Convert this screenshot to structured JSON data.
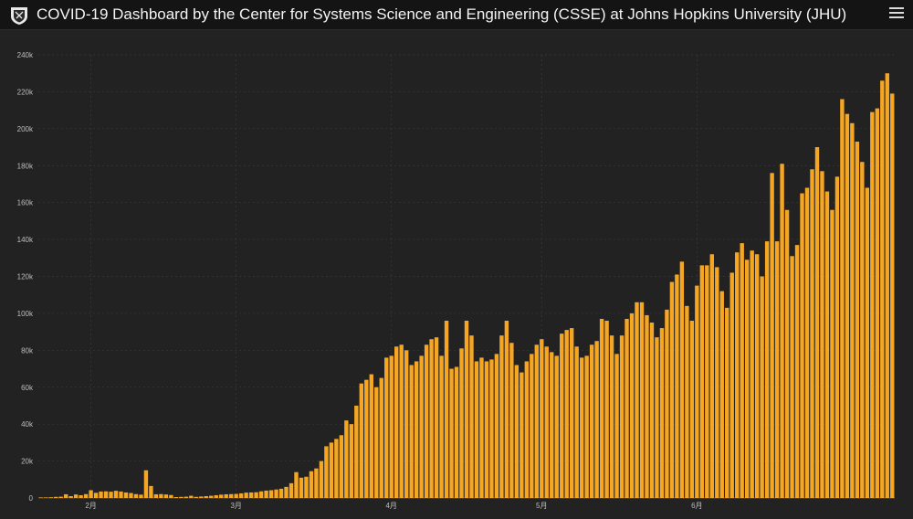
{
  "header": {
    "title": "COVID-19 Dashboard by the Center for Systems Science and Engineering (CSSE) at Johns Hopkins University (JHU)",
    "logo_icon": "jhu-shield-icon",
    "menu_icon": "hamburger-menu-icon"
  },
  "colors": {
    "bar": "#f5a623",
    "background": "#222222",
    "header_background": "#141414",
    "grid": "#3a3a3a",
    "tick_text": "#bdbdbd"
  },
  "chart_data": {
    "type": "bar",
    "title": "",
    "xlabel": "",
    "ylabel": "",
    "ylim": [
      0,
      240000
    ],
    "yticks": [
      {
        "value": 0,
        "label": "0"
      },
      {
        "value": 20000,
        "label": "20k"
      },
      {
        "value": 40000,
        "label": "40k"
      },
      {
        "value": 60000,
        "label": "60k"
      },
      {
        "value": 80000,
        "label": "80k"
      },
      {
        "value": 100000,
        "label": "100k"
      },
      {
        "value": 120000,
        "label": "120k"
      },
      {
        "value": 140000,
        "label": "140k"
      },
      {
        "value": 160000,
        "label": "160k"
      },
      {
        "value": 180000,
        "label": "180k"
      },
      {
        "value": 200000,
        "label": "200k"
      },
      {
        "value": 220000,
        "label": "220k"
      },
      {
        "value": 240000,
        "label": "240k"
      }
    ],
    "xticks": [
      {
        "index": 10,
        "label": "2月"
      },
      {
        "index": 39,
        "label": "3月"
      },
      {
        "index": 70,
        "label": "4月"
      },
      {
        "index": 100,
        "label": "5月"
      },
      {
        "index": 131,
        "label": "6月"
      }
    ],
    "grid": true,
    "values": [
      100,
      300,
      400,
      600,
      700,
      2000,
      1000,
      1900,
      1500,
      2100,
      4200,
      2800,
      3500,
      3600,
      3400,
      3900,
      3500,
      3000,
      2700,
      2100,
      1800,
      15000,
      6500,
      2000,
      2100,
      1900,
      1600,
      500,
      600,
      700,
      1200,
      600,
      800,
      1000,
      1200,
      1500,
      1800,
      2000,
      2100,
      2200,
      2500,
      2900,
      3000,
      3100,
      3600,
      4000,
      4200,
      4600,
      5000,
      6000,
      8000,
      14000,
      11000,
      11500,
      14500,
      16000,
      20000,
      28000,
      30000,
      32000,
      34000,
      42000,
      40000,
      50000,
      62000,
      64000,
      67000,
      60000,
      65000,
      76000,
      77000,
      82000,
      83000,
      80000,
      72000,
      74000,
      77000,
      83000,
      86000,
      87000,
      77000,
      96000,
      70000,
      71000,
      81000,
      96000,
      88000,
      74000,
      76000,
      74000,
      75000,
      78000,
      88000,
      96000,
      84000,
      72000,
      68000,
      74000,
      78000,
      83000,
      86000,
      82000,
      79000,
      77000,
      89000,
      91000,
      92000,
      82000,
      76000,
      77000,
      83000,
      85000,
      97000,
      96000,
      88000,
      78000,
      88000,
      97000,
      100000,
      106000,
      106000,
      99000,
      95000,
      87000,
      92000,
      102000,
      117000,
      121000,
      128000,
      104000,
      96000,
      115000,
      126000,
      126000,
      132000,
      125000,
      112000,
      103000,
      122000,
      133000,
      138000,
      129000,
      134000,
      132000,
      120000,
      139000,
      176000,
      139000,
      181000,
      156000,
      131000,
      137000,
      165000,
      168000,
      178000,
      190000,
      177000,
      166000,
      156000,
      174000,
      216000,
      208000,
      203000,
      193000,
      182000,
      168000,
      209000,
      211000,
      226000,
      230000,
      219000
    ]
  }
}
